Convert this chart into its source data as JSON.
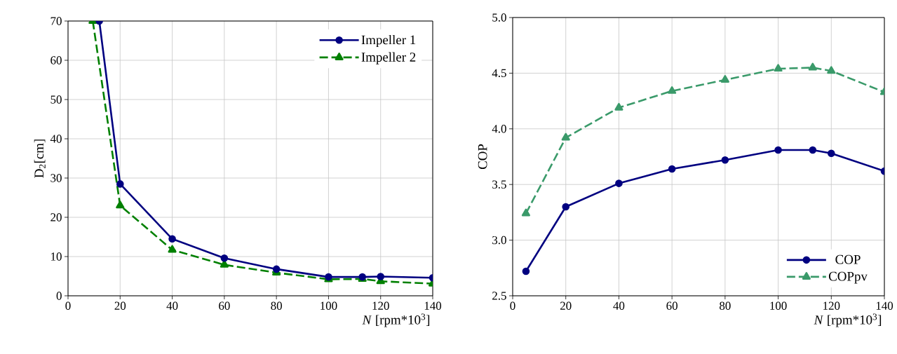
{
  "chart_data": [
    {
      "type": "line",
      "xlabel": "*N* [rpm*10$^{3}$]",
      "ylabel": "D$_{2}$[cm]",
      "xlim": [
        0,
        140
      ],
      "ylim": [
        0,
        70
      ],
      "xticks": [
        0,
        20,
        40,
        60,
        80,
        100,
        120,
        140
      ],
      "yticks": [
        0,
        10,
        20,
        30,
        40,
        50,
        60,
        70
      ],
      "grid": true,
      "legend": "top right",
      "series": [
        {
          "name": "Impeller 1",
          "color": "#000080",
          "marker": "circle",
          "line_style": "solid",
          "x": [
            12,
            20,
            40,
            60,
            80,
            100,
            113,
            120,
            140
          ],
          "values": [
            70,
            28.5,
            14.5,
            9.6,
            6.8,
            4.8,
            4.8,
            4.9,
            4.6
          ]
        },
        {
          "name": "Impeller 2",
          "color": "#008000",
          "marker": "triangle",
          "line_style": "dashed",
          "x": [
            9.5,
            20,
            40,
            60,
            80,
            100,
            113,
            120,
            140
          ],
          "values": [
            70,
            23,
            11.7,
            7.9,
            5.9,
            4.2,
            4.3,
            3.7,
            3.1
          ]
        }
      ]
    },
    {
      "type": "line",
      "xlabel": "*N* [rpm*10$^{3}$]",
      "ylabel": "COP",
      "xlim": [
        0,
        140
      ],
      "ylim": [
        2.5,
        5.0
      ],
      "xticks": [
        0,
        20,
        40,
        60,
        80,
        100,
        120,
        140
      ],
      "yticks": [
        {
          "value": 2.5,
          "label": "2.5"
        },
        {
          "value": 3.0,
          "label": "3.0"
        },
        {
          "value": 3.5,
          "label": "3.5"
        },
        {
          "value": 4.0,
          "label": "4.0"
        },
        {
          "value": 4.5,
          "label": "4.5"
        },
        {
          "value": 5.0,
          "label": "5.0"
        }
      ],
      "grid": true,
      "legend": "bottom right",
      "series": [
        {
          "name": "COP",
          "color": "#000080",
          "marker": "circle",
          "line_style": "solid",
          "x": [
            5,
            20,
            40,
            60,
            80,
            100,
            113,
            120,
            140
          ],
          "values": [
            2.72,
            3.3,
            3.51,
            3.64,
            3.72,
            3.81,
            3.81,
            3.78,
            3.62
          ]
        },
        {
          "name": "COPpv",
          "color": "#3a9a6a",
          "marker": "triangle",
          "line_style": "dashed",
          "x": [
            5,
            20,
            40,
            60,
            80,
            100,
            113,
            120,
            140
          ],
          "values": [
            3.24,
            3.92,
            4.19,
            4.34,
            4.44,
            4.54,
            4.55,
            4.52,
            4.33
          ]
        }
      ]
    }
  ]
}
